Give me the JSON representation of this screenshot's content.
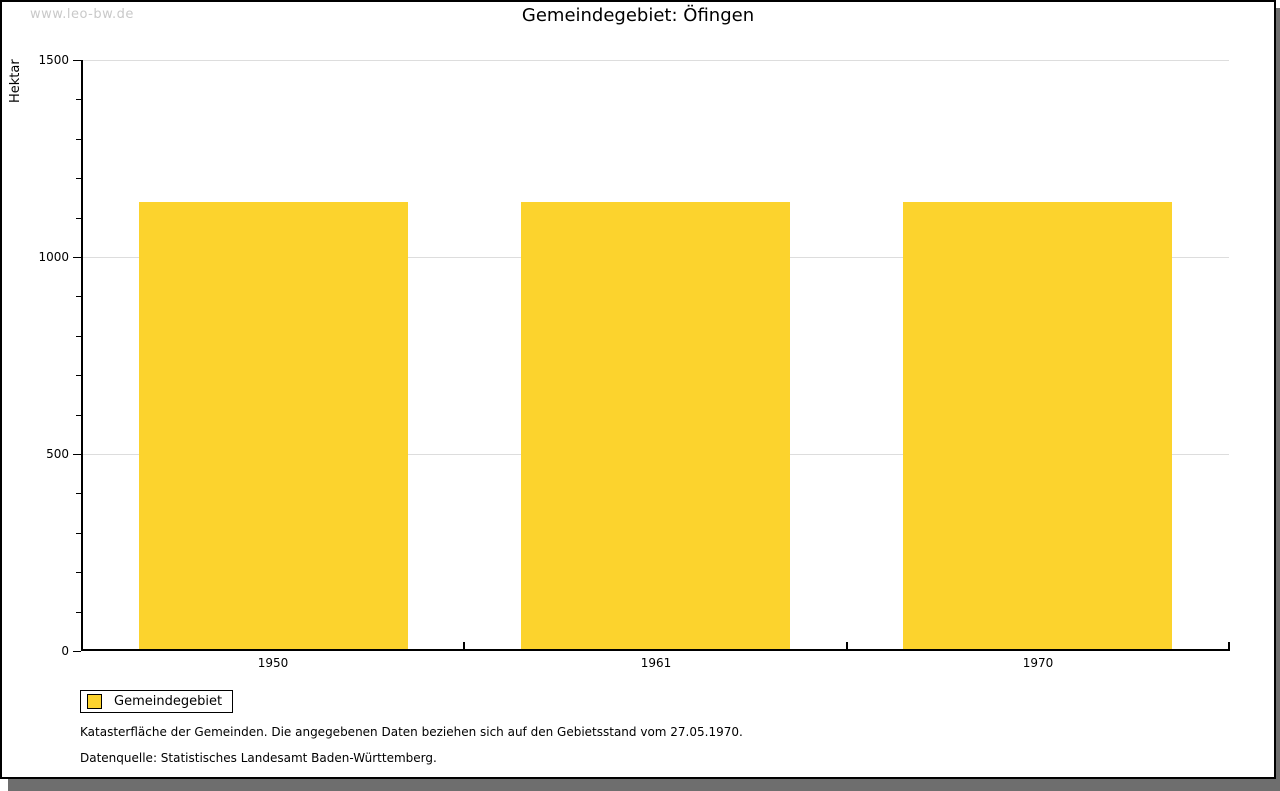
{
  "watermark": "www.leo-bw.de",
  "chart_data": {
    "type": "bar",
    "title": "Gemeindegebiet: Öfingen",
    "ylabel": "Hektar",
    "xlabel": "",
    "categories": [
      "1950",
      "1961",
      "1970"
    ],
    "series": [
      {
        "name": "Gemeindegebiet",
        "values": [
          1140,
          1140,
          1140
        ],
        "color": "#FCD32D"
      }
    ],
    "ylim": [
      0,
      1500
    ],
    "yticks_major": [
      0,
      500,
      1000,
      1500
    ],
    "ytick_minor_step": 100,
    "grid": "horizontal-major-lines",
    "grid_color": "#DDDDDD",
    "legend_position": "bottom-left",
    "legend_entries": [
      "Gemeindegebiet"
    ]
  },
  "footnotes": [
    "Katasterfläche der Gemeinden. Die angegebenen Daten beziehen sich auf den Gebietsstand vom 27.05.1970.",
    "Datenquelle: Statistisches Landesamt Baden-Württemberg."
  ],
  "colors": {
    "bar": "#FCD32D",
    "grid": "#DDDDDD",
    "axis": "#000000",
    "watermark": "#C9C9C9",
    "shadow": "#6E6E6E"
  }
}
